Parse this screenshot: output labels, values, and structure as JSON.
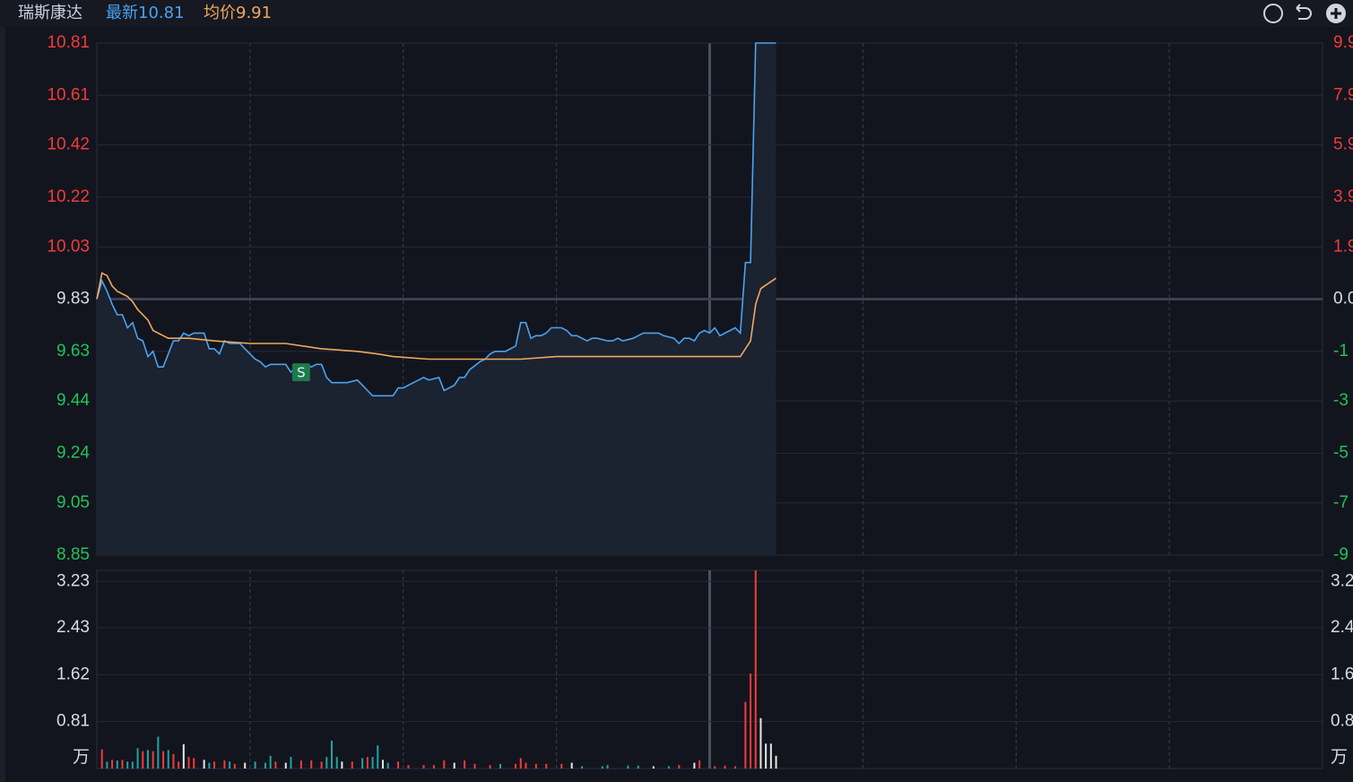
{
  "header": {
    "name": "瑞斯康达",
    "latest_label": "最新",
    "latest": 10.81,
    "avg_label": "均价",
    "avg": 9.91
  },
  "chart_data": [
    {
      "type": "line",
      "xlim": [
        0,
        240
      ],
      "ylim": [
        8.85,
        10.81
      ],
      "yticks": [
        10.81,
        10.61,
        10.42,
        10.22,
        10.03,
        9.83,
        9.63,
        9.44,
        9.24,
        9.05,
        8.85
      ],
      "right_labels": [
        "9.9",
        "7.9",
        "5.9",
        "3.9",
        "1.9",
        "0.0",
        "-1",
        "-3",
        "-5",
        "-7",
        "-9"
      ],
      "grid": true,
      "series": [
        {
          "color": "#4aa3f0",
          "area": true,
          "x": [
            0,
            1,
            2,
            3,
            4,
            5,
            6,
            7,
            8,
            9,
            10,
            11,
            12,
            13,
            14,
            15,
            16,
            17,
            18,
            19,
            21,
            22,
            23,
            24,
            25,
            26,
            28,
            29,
            30,
            31,
            32,
            33,
            34,
            36,
            37,
            38,
            39,
            41,
            42,
            43,
            44,
            45,
            46,
            48,
            49,
            51,
            52,
            53,
            54,
            55,
            57,
            58,
            59,
            60,
            61,
            63,
            64,
            65,
            67,
            68,
            70,
            71,
            72,
            73,
            75,
            76,
            77,
            78,
            80,
            81,
            82,
            83,
            84,
            85,
            86,
            87,
            88,
            89,
            91,
            92,
            93,
            94,
            96,
            97,
            98,
            100,
            101,
            102,
            103,
            105,
            106,
            107,
            109,
            110,
            111,
            113,
            114,
            115,
            116,
            117,
            118,
            119,
            120,
            121,
            122,
            123,
            124,
            125,
            126,
            127,
            128,
            129,
            133
          ],
          "values": [
            9.83,
            9.9,
            9.86,
            9.81,
            9.77,
            9.77,
            9.72,
            9.74,
            9.68,
            9.67,
            9.61,
            9.63,
            9.57,
            9.57,
            9.62,
            9.67,
            9.67,
            9.7,
            9.69,
            9.7,
            9.7,
            9.64,
            9.64,
            9.62,
            9.67,
            9.66,
            9.66,
            9.64,
            9.62,
            9.6,
            9.59,
            9.57,
            9.58,
            9.58,
            9.58,
            9.55,
            9.57,
            9.58,
            9.57,
            9.58,
            9.58,
            9.53,
            9.51,
            9.51,
            9.51,
            9.52,
            9.5,
            9.48,
            9.46,
            9.46,
            9.46,
            9.46,
            9.49,
            9.49,
            9.5,
            9.52,
            9.53,
            9.52,
            9.53,
            9.48,
            9.5,
            9.53,
            9.53,
            9.56,
            9.59,
            9.6,
            9.62,
            9.63,
            9.63,
            9.64,
            9.65,
            9.74,
            9.74,
            9.68,
            9.69,
            9.69,
            9.7,
            9.72,
            9.72,
            9.71,
            9.69,
            9.69,
            9.67,
            9.68,
            9.68,
            9.67,
            9.67,
            9.68,
            9.67,
            9.68,
            9.69,
            9.7,
            9.7,
            9.7,
            9.69,
            9.68,
            9.66,
            9.68,
            9.68,
            9.67,
            9.7,
            9.71,
            9.7,
            9.72,
            9.69,
            9.7,
            9.71,
            9.72,
            9.7,
            9.97,
            9.97,
            10.81,
            10.81
          ]
        },
        {
          "color": "#f0a860",
          "area": false,
          "x": [
            0,
            1,
            2,
            3,
            4,
            6,
            7,
            8,
            10,
            11,
            13,
            14,
            18,
            23,
            30,
            37,
            44,
            51,
            55,
            58,
            65,
            76,
            83,
            90,
            104,
            120,
            126,
            128,
            129,
            130,
            133
          ],
          "values": [
            9.83,
            9.93,
            9.92,
            9.88,
            9.86,
            9.84,
            9.82,
            9.79,
            9.75,
            9.71,
            9.69,
            9.68,
            9.68,
            9.67,
            9.66,
            9.66,
            9.64,
            9.63,
            9.62,
            9.61,
            9.6,
            9.6,
            9.6,
            9.61,
            9.61,
            9.61,
            9.61,
            9.67,
            9.81,
            9.87,
            9.91
          ]
        }
      ],
      "annotations": [
        {
          "text": "S",
          "x": 40,
          "y": 9.55
        }
      ]
    },
    {
      "type": "bar",
      "xlim": [
        0,
        240
      ],
      "ylim": [
        0,
        3.42
      ],
      "yticks": [
        3.23,
        2.43,
        1.62,
        0.81
      ],
      "unit_label": "万",
      "right_labels": [
        "3.2",
        "2.4",
        "1.6",
        "0.8"
      ],
      "right_unit_label": "万",
      "x": [
        1,
        2,
        3,
        4,
        5,
        6,
        7,
        8,
        9,
        10,
        11,
        12,
        13,
        14,
        15,
        16,
        17,
        18,
        19,
        21,
        22,
        23,
        25,
        26,
        27,
        29,
        31,
        33,
        34,
        35,
        37,
        38,
        40,
        42,
        44,
        45,
        46,
        47,
        48,
        50,
        52,
        53,
        54,
        55,
        56,
        57,
        59,
        61,
        64,
        66,
        68,
        70,
        72,
        74,
        77,
        79,
        82,
        83,
        84,
        86,
        88,
        91,
        93,
        95,
        99,
        100,
        104,
        106,
        109,
        112,
        114,
        117,
        118,
        121,
        123,
        125,
        127,
        128,
        129,
        130,
        131,
        132,
        133
      ],
      "values": [
        0.33,
        0.12,
        0.15,
        0.14,
        0.15,
        0.12,
        0.12,
        0.35,
        0.3,
        0.32,
        0.3,
        0.55,
        0.3,
        0.32,
        0.25,
        0.12,
        0.42,
        0.2,
        0.18,
        0.15,
        0.1,
        0.12,
        0.14,
        0.12,
        0.08,
        0.1,
        0.12,
        0.1,
        0.22,
        0.12,
        0.1,
        0.2,
        0.14,
        0.14,
        0.12,
        0.2,
        0.48,
        0.2,
        0.12,
        0.12,
        0.18,
        0.2,
        0.2,
        0.4,
        0.15,
        0.1,
        0.12,
        0.06,
        0.06,
        0.06,
        0.14,
        0.1,
        0.14,
        0.08,
        0.06,
        0.08,
        0.08,
        0.18,
        0.1,
        0.08,
        0.08,
        0.08,
        0.1,
        0.04,
        0.04,
        0.06,
        0.05,
        0.05,
        0.04,
        0.04,
        0.06,
        0.1,
        0.14,
        0.04,
        0.05,
        0.04,
        1.15,
        1.64,
        3.42,
        0.87,
        0.43,
        0.43,
        0.22
      ],
      "colors": [
        "#f23b3b",
        "#1aa6a6",
        "#f23b3b",
        "#1aa6a6",
        "#f23b3b",
        "#1aa6a6",
        "#1aa6a6",
        "#1aa6a6",
        "#f23b3b",
        "#1aa6a6",
        "#f23b3b",
        "#1aa6a6",
        "#f23b3b",
        "#1aa6a6",
        "#f23b3b",
        "#f23b3b",
        "#e6e6e6",
        "#f23b3b",
        "#f23b3b",
        "#e6e6e6",
        "#1aa6a6",
        "#f23b3b",
        "#f23b3b",
        "#1aa6a6",
        "#f23b3b",
        "#e6e6e6",
        "#1aa6a6",
        "#1aa6a6",
        "#1aa6a6",
        "#f23b3b",
        "#e6e6e6",
        "#1aa6a6",
        "#f23b3b",
        "#f23b3b",
        "#f23b3b",
        "#1aa6a6",
        "#1aa6a6",
        "#1aa6a6",
        "#e6e6e6",
        "#f23b3b",
        "#1aa6a6",
        "#f23b3b",
        "#1aa6a6",
        "#1aa6a6",
        "#e6e6e6",
        "#1aa6a6",
        "#f23b3b",
        "#f23b3b",
        "#f23b3b",
        "#f23b3b",
        "#f23b3b",
        "#e6e6e6",
        "#f23b3b",
        "#f23b3b",
        "#f23b3b",
        "#1aa6a6",
        "#f23b3b",
        "#f23b3b",
        "#f23b3b",
        "#f23b3b",
        "#f23b3b",
        "#f23b3b",
        "#e6e6e6",
        "#1aa6a6",
        "#1aa6a6",
        "#1aa6a6",
        "#1aa6a6",
        "#1aa6a6",
        "#e6e6e6",
        "#1aa6a6",
        "#f23b3b",
        "#e6e6e6",
        "#f23b3b",
        "#f23b3b",
        "#f23b3b",
        "#f23b3b",
        "#f23b3b",
        "#f23b3b",
        "#f23b3b",
        "#e6e6e6",
        "#e6e6e6",
        "#e6e6e6",
        "#e6e6e6"
      ]
    }
  ]
}
